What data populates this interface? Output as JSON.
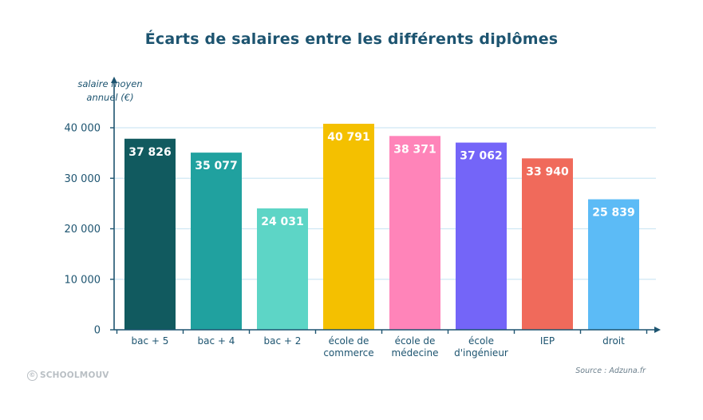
{
  "chart_data": {
    "type": "bar",
    "title": "Écarts de salaires entre les différents diplômes",
    "ylabel_line1": "salaire moyen",
    "ylabel_line2": "annuel (€)",
    "xlabel": "",
    "ylim": [
      0,
      45000
    ],
    "grid": true,
    "yticks": [
      {
        "value": 0,
        "label": "0"
      },
      {
        "value": 10000,
        "label": "10 000"
      },
      {
        "value": 20000,
        "label": "20 000"
      },
      {
        "value": 30000,
        "label": "30 000"
      },
      {
        "value": 40000,
        "label": "40 000"
      }
    ],
    "bars": [
      {
        "category": [
          "bac + 5"
        ],
        "value": 37826,
        "value_label": "37 826",
        "color": "#115a5f"
      },
      {
        "category": [
          "bac + 4"
        ],
        "value": 35077,
        "value_label": "35 077",
        "color": "#20a19f"
      },
      {
        "category": [
          "bac + 2"
        ],
        "value": 24031,
        "value_label": "24 031",
        "color": "#5dd5c6"
      },
      {
        "category": [
          "école de",
          "commerce"
        ],
        "value": 40791,
        "value_label": "40 791",
        "color": "#f4c000"
      },
      {
        "category": [
          "école de",
          "médecine"
        ],
        "value": 38371,
        "value_label": "38 371",
        "color": "#ff84b9"
      },
      {
        "category": [
          "école",
          "d'ingénieur"
        ],
        "value": 37062,
        "value_label": "37 062",
        "color": "#7465f8"
      },
      {
        "category": [
          "IEP"
        ],
        "value": 33940,
        "value_label": "33 940",
        "color": "#f06a5b"
      },
      {
        "category": [
          "droit"
        ],
        "value": 25839,
        "value_label": "25 839",
        "color": "#5cbbf6"
      }
    ],
    "colors": {
      "axis": "#1d5470",
      "grid": "#cfe8f4",
      "text": "#1d5470",
      "value_text": "#ffffff"
    }
  },
  "brand": "SCHOOLMOUV",
  "source": "Source : Adzuna.fr"
}
